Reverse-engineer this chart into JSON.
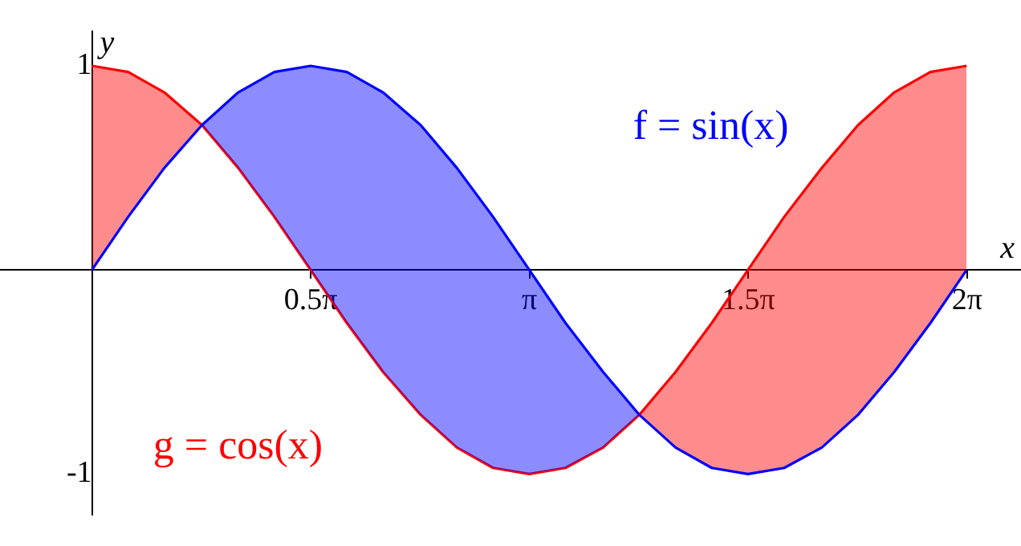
{
  "chart_data": {
    "type": "line",
    "xlabel": "x",
    "ylabel": "y",
    "x": [
      0,
      0.26,
      0.52,
      0.79,
      1.05,
      1.31,
      1.57,
      1.83,
      2.09,
      2.36,
      2.62,
      2.88,
      3.14,
      3.4,
      3.67,
      3.93,
      4.19,
      4.45,
      4.71,
      4.97,
      5.24,
      5.5,
      5.76,
      6.02,
      6.28
    ],
    "series": [
      {
        "name": "f = sin(x)",
        "color": "#0000ff",
        "values": [
          0,
          0.26,
          0.5,
          0.71,
          0.87,
          0.97,
          1,
          0.97,
          0.87,
          0.71,
          0.5,
          0.26,
          0,
          -0.26,
          -0.5,
          -0.71,
          -0.87,
          -0.97,
          -1,
          -0.97,
          -0.87,
          -0.71,
          -0.5,
          -0.26,
          0
        ]
      },
      {
        "name": "g = cos(x)",
        "color": "#ff0000",
        "values": [
          1,
          0.97,
          0.87,
          0.71,
          0.5,
          0.26,
          0,
          -0.26,
          -0.5,
          -0.71,
          -0.87,
          -0.97,
          -1,
          -0.97,
          -0.87,
          -0.71,
          -0.5,
          -0.26,
          0,
          0.26,
          0.5,
          0.71,
          0.87,
          0.97,
          1
        ]
      }
    ],
    "xlim": [
      -0.66,
      6.67
    ],
    "ylim": [
      -1.2,
      1.17
    ],
    "xticks": [
      {
        "value": 1.5708,
        "label": "0.5π"
      },
      {
        "value": 3.1416,
        "label": "π"
      },
      {
        "value": 4.7124,
        "label": "1.5π"
      },
      {
        "value": 6.2832,
        "label": "2π"
      }
    ],
    "yticks": [
      1,
      -1
    ],
    "grid": false,
    "legend": false,
    "marker": "none",
    "line_style": "solid"
  }
}
